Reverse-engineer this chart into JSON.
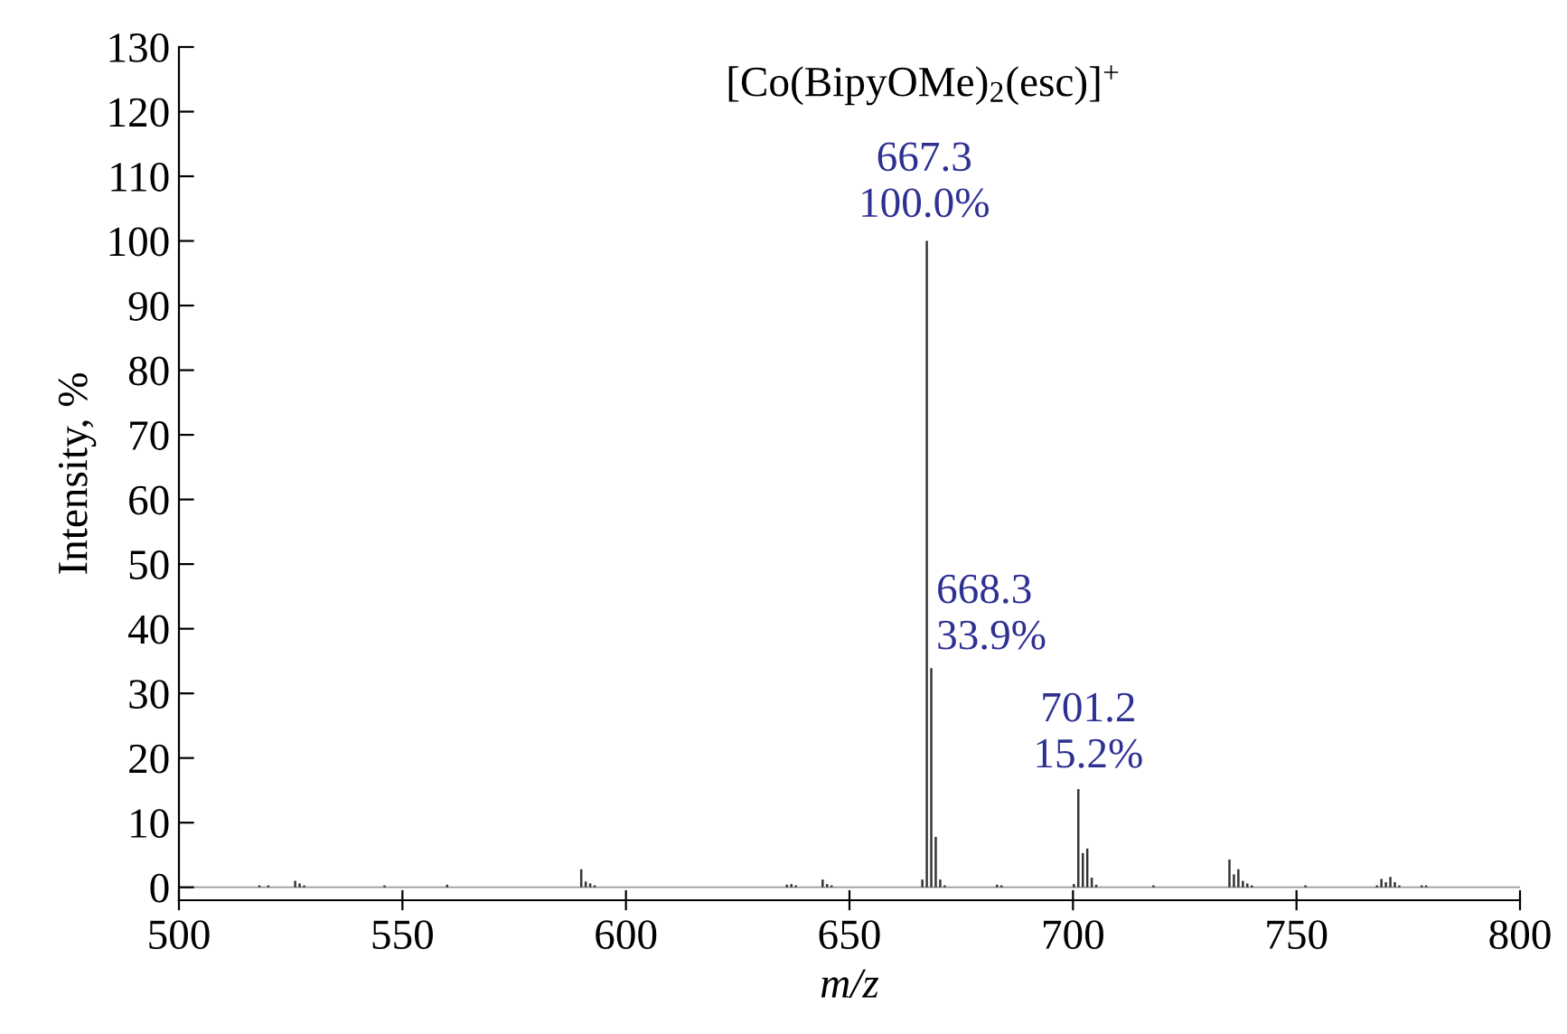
{
  "chart_data": {
    "type": "bar",
    "xlabel": "m/z",
    "ylabel": "Intensity, %",
    "x": [
      518,
      520,
      526,
      527,
      528,
      546,
      560,
      590,
      591,
      592,
      593,
      636,
      637,
      638,
      644,
      645,
      646,
      666.3,
      667.3,
      668.3,
      669.3,
      670.3,
      671.3,
      683,
      684,
      700.2,
      701.2,
      702.2,
      703.2,
      704.2,
      705.2,
      718,
      735,
      736,
      737,
      738,
      739,
      740,
      752,
      768,
      769,
      770,
      771,
      772,
      773,
      778,
      779
    ],
    "values": [
      0.3,
      0.3,
      1.0,
      0.6,
      0.3,
      0.3,
      0.4,
      2.8,
      0.9,
      0.6,
      0.3,
      0.4,
      0.5,
      0.3,
      1.2,
      0.5,
      0.3,
      1.2,
      100.0,
      33.9,
      7.8,
      1.2,
      0.3,
      0.4,
      0.3,
      0.5,
      15.2,
      5.3,
      6.0,
      1.5,
      0.4,
      0.3,
      4.3,
      2.0,
      2.8,
      1.0,
      0.6,
      0.3,
      0.3,
      0.3,
      1.3,
      0.8,
      1.6,
      0.8,
      0.3,
      0.3,
      0.3
    ],
    "color": "#333333",
    "xlim": [
      500,
      800
    ],
    "xticks": [
      500,
      550,
      600,
      650,
      700,
      750,
      800
    ],
    "ylim": [
      -2,
      130
    ],
    "yticks": [
      0,
      10,
      20,
      30,
      40,
      50,
      60,
      70,
      80,
      90,
      100,
      110,
      120,
      130
    ],
    "ref_lines": [
      {
        "axis": "y",
        "value": 0,
        "color": "#999999"
      }
    ],
    "annotations": [
      "[Co(BipyOMe)$_{2}$(esc)]$^{+}$",
      {
        "text": "667.3\n100.0%",
        "x": 667.3,
        "y": 100.0
      },
      {
        "text": "668.3\n33.9%",
        "x": 668.3,
        "y": 33.9
      },
      {
        "text": "701.2\n15.2%",
        "x": 701.2,
        "y": 15.2
      }
    ],
    "grid": false,
    "legend": false
  }
}
